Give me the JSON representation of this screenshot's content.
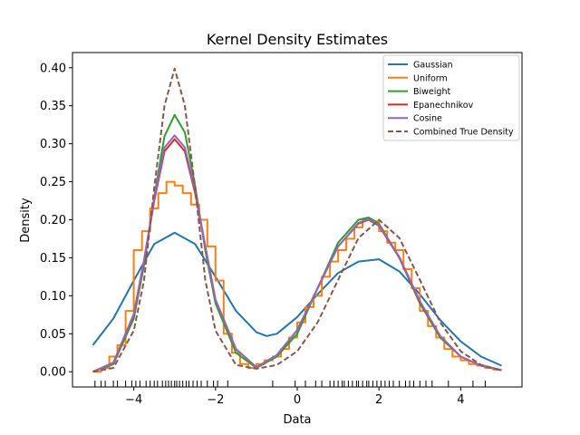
{
  "chart_data": {
    "type": "line",
    "title": "Kernel Density Estimates",
    "xlabel": "Data",
    "ylabel": "Density",
    "xlim": [
      -5.5,
      5.5
    ],
    "ylim": [
      -0.02,
      0.42
    ],
    "x_ticks": [
      -4,
      -2,
      0,
      2,
      4
    ],
    "y_ticks": [
      0.0,
      0.05,
      0.1,
      0.15,
      0.2,
      0.25,
      0.3,
      0.35,
      0.4
    ],
    "x_tick_labels": [
      "−4",
      "−2",
      "0",
      "2",
      "4"
    ],
    "y_tick_labels": [
      "0.00",
      "0.05",
      "0.10",
      "0.15",
      "0.20",
      "0.25",
      "0.30",
      "0.35",
      "0.40"
    ],
    "grid": false,
    "legend_position": "top-right",
    "x_range": [
      -5,
      5
    ],
    "series": [
      {
        "name": "Gaussian",
        "color": "#1f77b4",
        "style": "solid",
        "x": [
          -5.0,
          -4.5,
          -4.0,
          -3.5,
          -3.0,
          -2.5,
          -2.0,
          -1.5,
          -1.0,
          -0.75,
          -0.5,
          0.0,
          0.5,
          1.0,
          1.5,
          2.0,
          2.5,
          3.0,
          3.5,
          4.0,
          4.5,
          5.0
        ],
        "y": [
          0.035,
          0.07,
          0.12,
          0.168,
          0.183,
          0.168,
          0.125,
          0.08,
          0.052,
          0.047,
          0.05,
          0.072,
          0.102,
          0.13,
          0.145,
          0.148,
          0.132,
          0.102,
          0.068,
          0.04,
          0.02,
          0.008
        ]
      },
      {
        "name": "Uniform",
        "color": "#ff7f0e",
        "style": "step",
        "x": [
          -5.0,
          -4.8,
          -4.6,
          -4.4,
          -4.2,
          -4.0,
          -3.8,
          -3.6,
          -3.4,
          -3.2,
          -3.0,
          -2.8,
          -2.6,
          -2.4,
          -2.2,
          -2.0,
          -1.8,
          -1.6,
          -1.4,
          -1.2,
          -1.0,
          -0.8,
          -0.6,
          -0.4,
          -0.2,
          0.0,
          0.2,
          0.4,
          0.6,
          0.8,
          1.0,
          1.2,
          1.4,
          1.6,
          1.8,
          2.0,
          2.2,
          2.4,
          2.6,
          2.8,
          3.0,
          3.2,
          3.4,
          3.6,
          3.8,
          4.0,
          4.2,
          4.4,
          4.6,
          4.8,
          5.0
        ],
        "y": [
          0.0,
          0.005,
          0.02,
          0.035,
          0.08,
          0.16,
          0.185,
          0.215,
          0.235,
          0.25,
          0.245,
          0.235,
          0.22,
          0.2,
          0.165,
          0.12,
          0.05,
          0.025,
          0.01,
          0.005,
          0.01,
          0.015,
          0.02,
          0.03,
          0.045,
          0.065,
          0.085,
          0.1,
          0.125,
          0.145,
          0.16,
          0.175,
          0.19,
          0.2,
          0.198,
          0.185,
          0.17,
          0.16,
          0.135,
          0.11,
          0.08,
          0.06,
          0.045,
          0.03,
          0.02,
          0.015,
          0.01,
          0.008,
          0.005,
          0.003,
          0.003
        ]
      },
      {
        "name": "Biweight",
        "color": "#2ca02c",
        "style": "solid",
        "x": [
          -5.0,
          -4.5,
          -4.0,
          -3.75,
          -3.5,
          -3.25,
          -3.0,
          -2.75,
          -2.5,
          -2.25,
          -2.0,
          -1.5,
          -1.0,
          -0.5,
          0.0,
          0.5,
          1.0,
          1.5,
          1.75,
          2.0,
          2.5,
          3.0,
          3.5,
          4.0,
          4.5,
          5.0
        ],
        "y": [
          0.0,
          0.01,
          0.07,
          0.14,
          0.23,
          0.31,
          0.338,
          0.315,
          0.245,
          0.16,
          0.09,
          0.025,
          0.005,
          0.02,
          0.05,
          0.11,
          0.17,
          0.2,
          0.203,
          0.195,
          0.15,
          0.09,
          0.045,
          0.02,
          0.008,
          0.002
        ]
      },
      {
        "name": "Epanechnikov",
        "color": "#d62728",
        "style": "solid",
        "x": [
          -5.0,
          -4.5,
          -4.0,
          -3.75,
          -3.5,
          -3.25,
          -3.0,
          -2.75,
          -2.5,
          -2.25,
          -2.0,
          -1.5,
          -1.0,
          -0.5,
          0.0,
          0.5,
          1.0,
          1.5,
          1.75,
          2.0,
          2.5,
          3.0,
          3.5,
          4.0,
          4.5,
          5.0
        ],
        "y": [
          0.0,
          0.012,
          0.075,
          0.145,
          0.225,
          0.29,
          0.306,
          0.29,
          0.235,
          0.165,
          0.095,
          0.03,
          0.006,
          0.022,
          0.055,
          0.11,
          0.165,
          0.195,
          0.2,
          0.192,
          0.15,
          0.092,
          0.047,
          0.02,
          0.008,
          0.002
        ]
      },
      {
        "name": "Cosine",
        "color": "#9467bd",
        "style": "solid",
        "x": [
          -5.0,
          -4.5,
          -4.0,
          -3.75,
          -3.5,
          -3.25,
          -3.0,
          -2.75,
          -2.5,
          -2.25,
          -2.0,
          -1.5,
          -1.0,
          -0.5,
          0.0,
          0.5,
          1.0,
          1.5,
          1.75,
          2.0,
          2.5,
          3.0,
          3.5,
          4.0,
          4.5,
          5.0
        ],
        "y": [
          0.0,
          0.012,
          0.076,
          0.147,
          0.228,
          0.295,
          0.311,
          0.295,
          0.238,
          0.166,
          0.095,
          0.03,
          0.006,
          0.022,
          0.055,
          0.11,
          0.165,
          0.196,
          0.201,
          0.193,
          0.151,
          0.093,
          0.047,
          0.02,
          0.008,
          0.002
        ]
      },
      {
        "name": "Combined True Density",
        "color": "#8c564b",
        "style": "dashed",
        "x": [
          -5.0,
          -4.5,
          -4.0,
          -3.75,
          -3.5,
          -3.25,
          -3.0,
          -2.75,
          -2.5,
          -2.25,
          -2.0,
          -1.5,
          -1.0,
          -0.5,
          0.0,
          0.5,
          1.0,
          1.5,
          2.0,
          2.5,
          3.0,
          3.5,
          4.0,
          4.5,
          5.0
        ],
        "y": [
          0.0,
          0.005,
          0.054,
          0.12,
          0.242,
          0.35,
          0.399,
          0.35,
          0.242,
          0.121,
          0.054,
          0.009,
          0.004,
          0.009,
          0.027,
          0.065,
          0.121,
          0.176,
          0.2,
          0.176,
          0.121,
          0.065,
          0.027,
          0.009,
          0.002
        ]
      }
    ],
    "rug_x": [
      -4.95,
      -4.8,
      -4.7,
      -4.5,
      -4.4,
      -4.2,
      -4.05,
      -3.95,
      -3.85,
      -3.7,
      -3.6,
      -3.5,
      -3.42,
      -3.3,
      -3.22,
      -3.15,
      -3.08,
      -3.0,
      -2.95,
      -2.88,
      -2.8,
      -2.72,
      -2.65,
      -2.55,
      -2.45,
      -2.35,
      -2.2,
      -2.05,
      -1.95,
      -1.7,
      -0.6,
      -0.05,
      0.2,
      0.45,
      0.6,
      0.8,
      0.9,
      1.0,
      1.1,
      1.15,
      1.25,
      1.35,
      1.45,
      1.5,
      1.6,
      1.7,
      1.75,
      1.85,
      1.95,
      2.05,
      2.15,
      2.25,
      2.35,
      2.5,
      2.65,
      2.75,
      2.85,
      3.0,
      3.15,
      3.3,
      3.7,
      4.3,
      4.6
    ]
  }
}
